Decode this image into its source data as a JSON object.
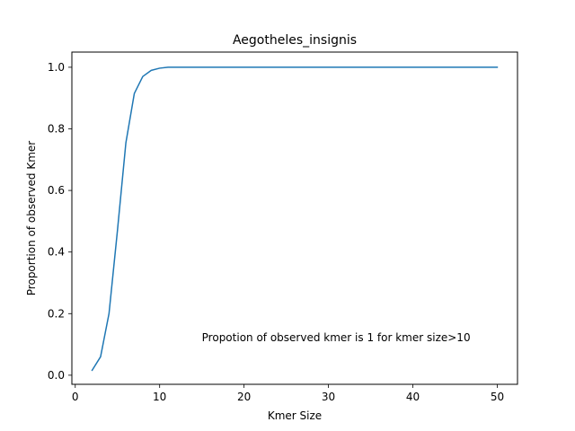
{
  "chart_data": {
    "type": "line",
    "title": "Aegotheles_insignis",
    "xlabel": "Kmer Size",
    "ylabel": "Proportion of observed Kmer",
    "xlim": [
      -0.4,
      52.4
    ],
    "ylim": [
      -0.0295,
      1.0493
    ],
    "xticks": [
      0,
      10,
      20,
      30,
      40,
      50
    ],
    "xtick_labels": [
      "0",
      "10",
      "20",
      "30",
      "40",
      "50"
    ],
    "yticks": [
      0.0,
      0.2,
      0.4,
      0.6,
      0.8,
      1.0
    ],
    "ytick_labels": [
      "0.0",
      "0.2",
      "0.4",
      "0.6",
      "0.8",
      "1.0"
    ],
    "grid": false,
    "line_color": "#1f77b4",
    "series": [
      {
        "x": [
          2,
          3,
          4,
          5,
          6,
          7,
          8,
          9,
          10,
          11,
          12,
          13,
          14,
          15,
          16,
          17,
          18,
          19,
          20,
          21,
          22,
          23,
          24,
          25,
          26,
          27,
          28,
          29,
          30,
          31,
          32,
          33,
          34,
          35,
          36,
          37,
          38,
          39,
          40,
          41,
          42,
          43,
          44,
          45,
          46,
          47,
          48,
          49,
          50
        ],
        "y": [
          0.016,
          0.06,
          0.2,
          0.47,
          0.755,
          0.915,
          0.97,
          0.99,
          0.997,
          1.0,
          1.0,
          1.0,
          1.0,
          1.0,
          1.0,
          1.0,
          1.0,
          1.0,
          1.0,
          1.0,
          1.0,
          1.0,
          1.0,
          1.0,
          1.0,
          1.0,
          1.0,
          1.0,
          1.0,
          1.0,
          1.0,
          1.0,
          1.0,
          1.0,
          1.0,
          1.0,
          1.0,
          1.0,
          1.0,
          1.0,
          1.0,
          1.0,
          1.0,
          1.0,
          1.0,
          1.0,
          1.0,
          1.0,
          1.0
        ]
      }
    ],
    "annotations": [
      {
        "text": "Propotion of observed kmer is 1 for kmer size>10",
        "x": 15,
        "y": 0.11
      }
    ]
  }
}
